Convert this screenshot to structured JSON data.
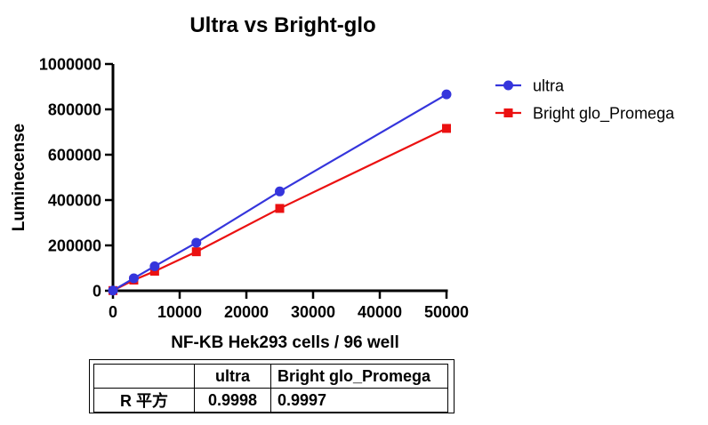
{
  "chart_data": {
    "type": "line",
    "title": "Ultra vs Bright-glo",
    "xlabel": "NF-KB Hek293 cells / 96 well",
    "ylabel": "Luminecense",
    "xlim": [
      0,
      50000
    ],
    "ylim": [
      0,
      1000000
    ],
    "x_ticks": [
      0,
      10000,
      20000,
      30000,
      40000,
      50000
    ],
    "y_ticks": [
      0,
      200000,
      400000,
      600000,
      800000,
      1000000
    ],
    "grid": false,
    "legend_position": "right",
    "x": [
      0,
      3125,
      6250,
      12500,
      25000,
      50000
    ],
    "series": [
      {
        "name": "ultra",
        "color": "#3535DC",
        "marker": "circle",
        "values": [
          1000,
          55000,
          108000,
          212000,
          438000,
          866000
        ]
      },
      {
        "name": "Bright glo_Promega",
        "color": "#EB1111",
        "marker": "square",
        "values": [
          800,
          47000,
          86000,
          172000,
          363000,
          716000
        ]
      }
    ],
    "axis_color": "#000000"
  },
  "stats_table": {
    "headers": [
      "",
      "ultra",
      "Bright glo_Promega"
    ],
    "rows": [
      [
        "R 平方",
        "0.9998",
        "0.9997"
      ]
    ]
  }
}
